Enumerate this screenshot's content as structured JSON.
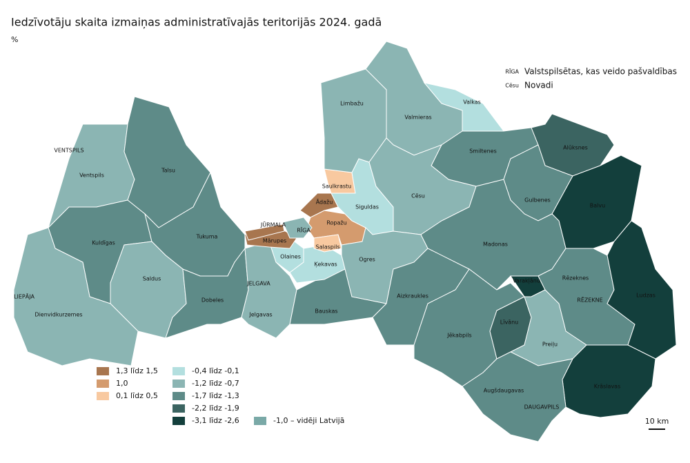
{
  "title": "Iedzīvotāju skaita izmaiņas administratīvajās teritorijās 2024. gadā",
  "unit": "%",
  "key": [
    {
      "sample": "RĪGA",
      "text": "Valstspilsētas, kas veido pašvaldības"
    },
    {
      "sample": "Cēsu",
      "text": "Novadi"
    }
  ],
  "legend": [
    {
      "label": "1,3 līdz 1,5",
      "color": "#a8764f"
    },
    {
      "label": "1,0",
      "color": "#d49b6e"
    },
    {
      "label": "0,1 līdz 0,5",
      "color": "#f8c9a0"
    },
    {
      "label": "-0,4 līdz -0,1",
      "color": "#b3dfdf"
    },
    {
      "label": "-1,2 līdz -0,7",
      "color": "#8bb5b3"
    },
    {
      "label": "-1,7 līdz -1,3",
      "color": "#5e8b88"
    },
    {
      "label": "-2,2 līdz -1,9",
      "color": "#3b6461"
    },
    {
      "label": "-3,1 līdz -2,6",
      "color": "#133f3c"
    }
  ],
  "average": {
    "label": "-1,0 – vidēji Latvijā",
    "color": "#7aa9a7"
  },
  "regions": [
    {
      "label": "Ventspils",
      "color": "#8bb5b3"
    },
    {
      "label": "Talsu",
      "color": "#5e8b88"
    },
    {
      "label": "Kuldīgas",
      "color": "#5e8b88"
    },
    {
      "label": "Tukuma",
      "color": "#5e8b88"
    },
    {
      "label": "Saldus",
      "color": "#8bb5b3"
    },
    {
      "label": "Dienvidkurzemes",
      "color": "#8bb5b3"
    },
    {
      "label": "Dobeles",
      "color": "#5e8b88"
    },
    {
      "label": "Jelgavas",
      "color": "#8bb5b3"
    },
    {
      "label": "Bauskas",
      "color": "#5e8b88"
    },
    {
      "label": "Olaines",
      "color": "#b3dfdf"
    },
    {
      "label": "Mārupes",
      "color": "#a8764f"
    },
    {
      "label": "Ķekavas",
      "color": "#b3dfdf"
    },
    {
      "label": "Ropažu",
      "color": "#d49b6e"
    },
    {
      "label": "Salaspils",
      "color": "#f8c9a0"
    },
    {
      "label": "Ādažu",
      "color": "#a8764f"
    },
    {
      "label": "Saulkrastu",
      "color": "#f8c9a0"
    },
    {
      "label": "Siguldas",
      "color": "#b3dfdf"
    },
    {
      "label": "Limbažu",
      "color": "#8bb5b3"
    },
    {
      "label": "Valmieras",
      "color": "#8bb5b3"
    },
    {
      "label": "Valkas",
      "color": "#b3dfdf"
    },
    {
      "label": "Smiltenes",
      "color": "#5e8b88"
    },
    {
      "label": "Alūksnes",
      "color": "#3b6461"
    },
    {
      "label": "Balvu",
      "color": "#133f3c"
    },
    {
      "label": "Gulbenes",
      "color": "#5e8b88"
    },
    {
      "label": "Cēsu",
      "color": "#8bb5b3"
    },
    {
      "label": "Ogres",
      "color": "#8bb5b3"
    },
    {
      "label": "Madonas",
      "color": "#5e8b88"
    },
    {
      "label": "Aizkraukles",
      "color": "#5e8b88"
    },
    {
      "label": "Jēkabpils",
      "color": "#5e8b88"
    },
    {
      "label": "Varakļānu",
      "color": "#133f3c"
    },
    {
      "label": "Rēzeknes",
      "color": "#5e8b88"
    },
    {
      "label": "Ludzas",
      "color": "#133f3c"
    },
    {
      "label": "Līvānu",
      "color": "#3b6461"
    },
    {
      "label": "Preiļu",
      "color": "#8bb5b3"
    },
    {
      "label": "Krāslavas",
      "color": "#133f3c"
    },
    {
      "label": "Augšdaugavas",
      "color": "#5e8b88"
    },
    {
      "label": "RĪGA",
      "color": "#8bb5b3"
    },
    {
      "label": "JŪRMALA",
      "color": "#a8764f"
    }
  ],
  "cities": [
    "VENTSPILS",
    "LIEPĀJA",
    "JELGAVA",
    "RĒZEKNE",
    "DAUGAVPILS"
  ],
  "scale": "10 km"
}
